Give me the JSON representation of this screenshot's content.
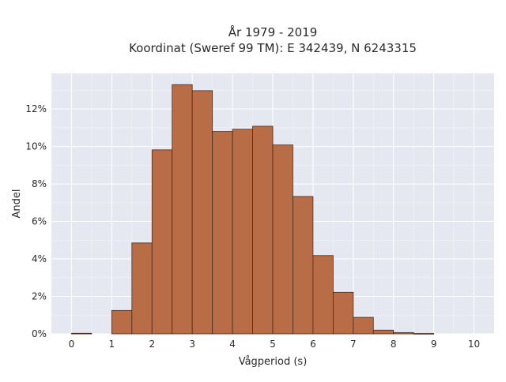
{
  "chart_data": {
    "type": "bar",
    "title_lines": [
      "År 1979 - 2019",
      "Koordinat (Sweref 99 TM): E 342439, N 6243315"
    ],
    "xlabel": "Vågperiod (s)",
    "ylabel": "Andel",
    "bin_width": 0.5,
    "bins": [
      {
        "start": 0.0,
        "value": 0.03
      },
      {
        "start": 0.5,
        "value": 0.0
      },
      {
        "start": 1.0,
        "value": 1.25
      },
      {
        "start": 1.5,
        "value": 4.85
      },
      {
        "start": 2.0,
        "value": 9.82
      },
      {
        "start": 2.5,
        "value": 13.3
      },
      {
        "start": 3.0,
        "value": 12.98
      },
      {
        "start": 3.5,
        "value": 10.8
      },
      {
        "start": 4.0,
        "value": 10.92
      },
      {
        "start": 4.5,
        "value": 11.08
      },
      {
        "start": 5.0,
        "value": 10.08
      },
      {
        "start": 5.5,
        "value": 7.33
      },
      {
        "start": 6.0,
        "value": 4.18
      },
      {
        "start": 6.5,
        "value": 2.22
      },
      {
        "start": 7.0,
        "value": 0.88
      },
      {
        "start": 7.5,
        "value": 0.2
      },
      {
        "start": 8.0,
        "value": 0.07
      },
      {
        "start": 8.5,
        "value": 0.02
      }
    ],
    "x_ticks": [
      "0",
      "1",
      "2",
      "3",
      "4",
      "5",
      "6",
      "7",
      "8",
      "9",
      "10"
    ],
    "y_ticks": [
      "0%",
      "2%",
      "4%",
      "6%",
      "8%",
      "10%",
      "12%"
    ],
    "xlim": [
      -0.5,
      10.5
    ],
    "ylim": [
      0,
      13.9
    ],
    "grid": true,
    "colors": {
      "bar": "#b86d46",
      "edge": "#4a2a1a",
      "plot_bg": "#e5e8f1",
      "grid": "#ffffff"
    }
  }
}
